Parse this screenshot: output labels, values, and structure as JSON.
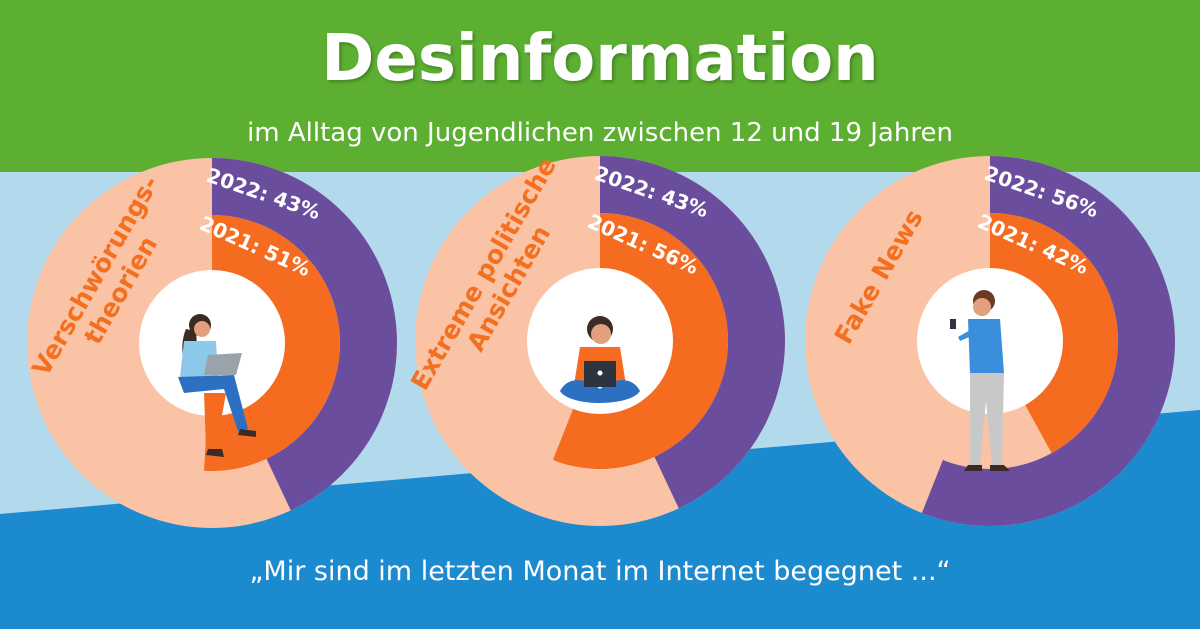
{
  "header": {
    "title": "Desinformation",
    "subtitle": "im Alltag von Jugendlichen zwischen 12 und 19 Jahren"
  },
  "footer": {
    "quote": "„Mir sind im letzten Monat im Internet begegnet ...“"
  },
  "colors": {
    "header_green": "#5caf31",
    "light_blue": "#b3d9ec",
    "dark_blue": "#1b8acf",
    "peach": "#fbc3a5",
    "purple": "#6b4d9e",
    "orange": "#f56c21",
    "label_orange": "#f37021"
  },
  "chart_data": [
    {
      "type": "pie",
      "category": "Verschwörungs-\ntheorien",
      "series": [
        {
          "name": "2022",
          "value": 43,
          "label": "2022: 43%",
          "ring": "outer"
        },
        {
          "name": "2021",
          "value": 51,
          "label": "2021: 51%",
          "ring": "inner"
        }
      ],
      "icon": "woman-with-laptop-icon"
    },
    {
      "type": "pie",
      "category": "Extreme politische\nAnsichten",
      "series": [
        {
          "name": "2022",
          "value": 43,
          "label": "2022: 43%",
          "ring": "outer"
        },
        {
          "name": "2021",
          "value": 56,
          "label": "2021: 56%",
          "ring": "inner"
        }
      ],
      "icon": "boy-with-laptop-icon"
    },
    {
      "type": "pie",
      "category": "Fake News",
      "series": [
        {
          "name": "2022",
          "value": 56,
          "label": "2022: 56%",
          "ring": "outer"
        },
        {
          "name": "2021",
          "value": 42,
          "label": "2021: 42%",
          "ring": "inner"
        }
      ],
      "icon": "man-with-phone-icon"
    }
  ]
}
